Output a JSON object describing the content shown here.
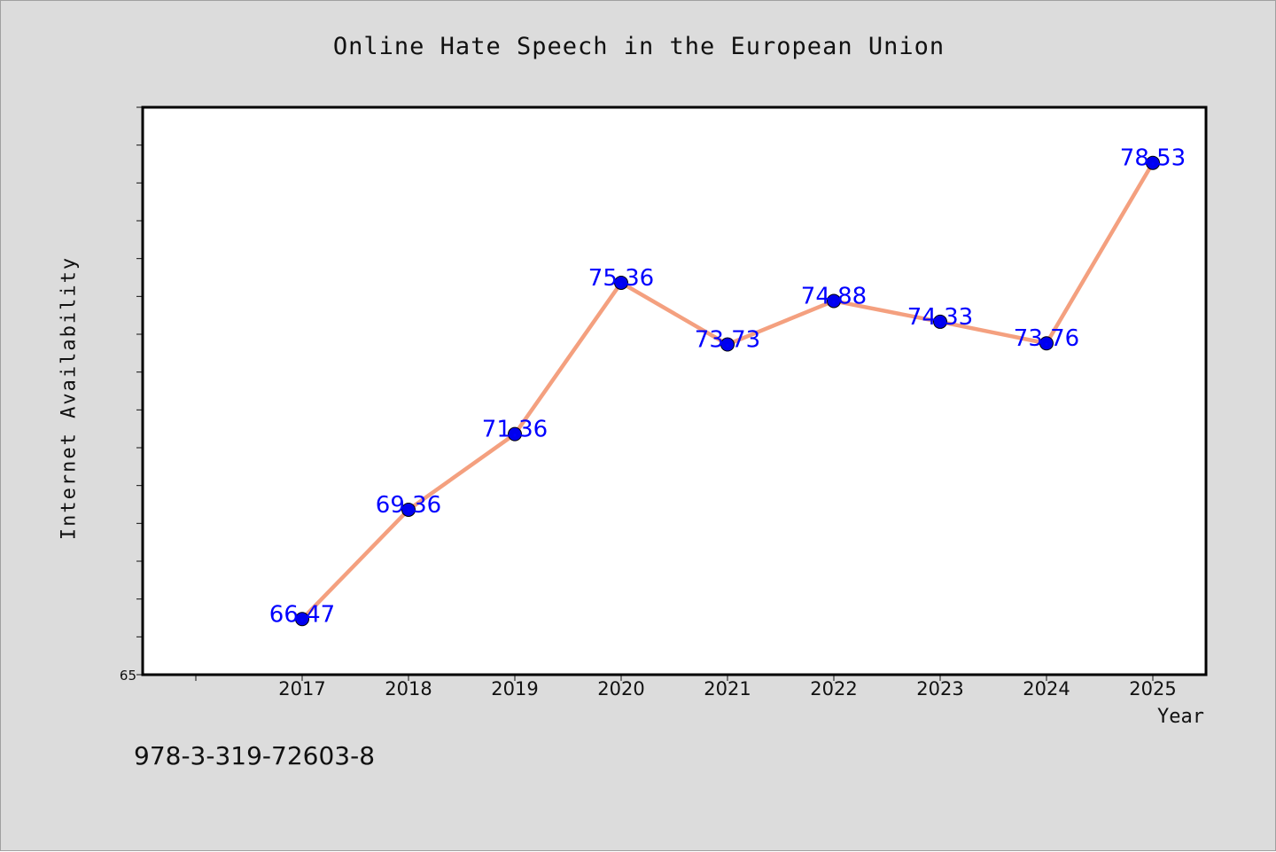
{
  "chart_data": {
    "type": "line",
    "title": "Online Hate Speech in the European Union",
    "xlabel": "Year",
    "ylabel": "Internet Availability",
    "categories": [
      "2017",
      "2018",
      "2019",
      "2020",
      "2021",
      "2022",
      "2023",
      "2024",
      "2025"
    ],
    "values": [
      66.47,
      69.36,
      71.36,
      75.36,
      73.73,
      74.88,
      74.33,
      73.76,
      78.53
    ],
    "data_labels": [
      "66.47",
      "69.36",
      "71.36",
      "75.36",
      "73.73",
      "74.88",
      "74.33",
      "73.76",
      "78.53"
    ],
    "y_tick_labels": [
      "65"
    ],
    "ylim": [
      65,
      80
    ],
    "grid": false,
    "legend": "none",
    "colors": {
      "line": "#f4a07f",
      "marker": "#0000ee",
      "label": "#0000ff",
      "background": "#dcdcdc",
      "plot_background": "#ffffff"
    }
  },
  "footnote": "978-3-319-72603-8"
}
